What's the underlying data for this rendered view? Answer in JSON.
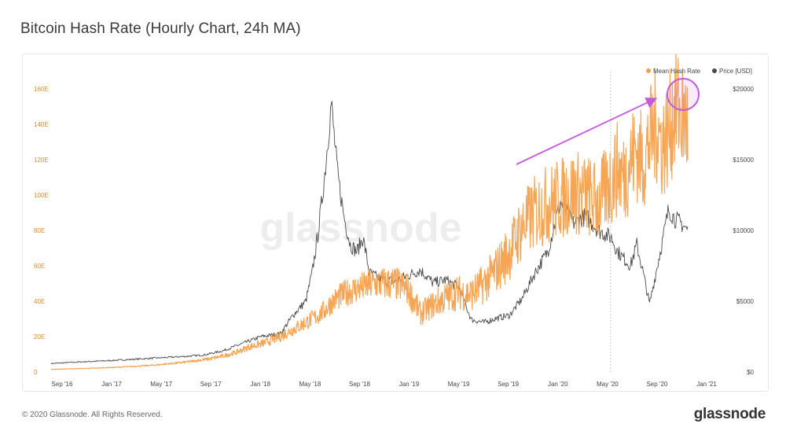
{
  "header": {
    "title": "Bitcoin Hash Rate (Hourly Chart, 24h MA)"
  },
  "footer": {
    "copyright": "© 2020 Glassnode. All Rights Reserved.",
    "brand": "glassnode"
  },
  "watermark": "glassnode",
  "colors": {
    "hash": "#f5a04c",
    "price": "#4a4a4a",
    "annotation": "#c45bdc",
    "leftAxis": "#e08a2e"
  },
  "chart_data": {
    "type": "line",
    "title": "Bitcoin Hash Rate (Hourly Chart, 24h MA)",
    "x_ticks": [
      "Sep '16",
      "Jan '17",
      "May '17",
      "Sep '17",
      "Jan '18",
      "May '18",
      "Sep '18",
      "Jan '19",
      "May '19",
      "Sep '19",
      "Jan '20",
      "May '20",
      "Sep '20",
      "Jan '21"
    ],
    "y_left": {
      "label": "Mean Hash Rate",
      "ticks": [
        "0",
        "20E",
        "40E",
        "60E",
        "80E",
        "100E",
        "120E",
        "140E",
        "160E"
      ],
      "ylim": [
        0,
        160
      ]
    },
    "y_right": {
      "label": "Price [USD]",
      "ticks": [
        "$0",
        "$5000",
        "$10000",
        "$15000",
        "$20000"
      ],
      "ylim": [
        0,
        20000
      ]
    },
    "legend": {
      "position": "top-right",
      "entries": [
        "Mean Hash Rate",
        "Price [USD]"
      ]
    },
    "series": [
      {
        "name": "Mean Hash Rate",
        "axis": "left",
        "x": [
          0.0,
          0.03,
          0.07,
          0.11,
          0.13,
          0.16,
          0.18,
          0.2,
          0.22,
          0.25,
          0.27,
          0.29,
          0.31,
          0.34,
          0.36,
          0.38,
          0.4,
          0.42,
          0.43,
          0.44,
          0.45,
          0.47,
          0.49,
          0.51,
          0.54,
          0.56,
          0.58,
          0.6,
          0.62,
          0.64,
          0.66,
          0.68,
          0.7,
          0.72,
          0.74,
          0.76,
          0.78,
          0.8,
          0.82,
          0.84,
          0.86,
          0.88,
          0.89,
          0.9,
          0.91,
          0.92,
          0.93,
          0.94,
          0.95,
          0.96,
          0.97,
          0.98,
          0.99,
          1.0
        ],
        "y": [
          1.5,
          1.8,
          2.2,
          2.8,
          3.2,
          3.8,
          4.5,
          5.2,
          6.0,
          7.5,
          9.0,
          11,
          14,
          17,
          20,
          24,
          28,
          32,
          35,
          39,
          42,
          46,
          48,
          50,
          50,
          47,
          33,
          38,
          42,
          45,
          44,
          50,
          58,
          68,
          82,
          90,
          95,
          98,
          102,
          100,
          96,
          108,
          115,
          110,
          120,
          125,
          118,
          130,
          140,
          128,
          135,
          150,
          145,
          140
        ]
      },
      {
        "name": "Price [USD]",
        "axis": "right",
        "x": [
          0.0,
          0.04,
          0.09,
          0.13,
          0.17,
          0.21,
          0.24,
          0.27,
          0.3,
          0.33,
          0.36,
          0.38,
          0.4,
          0.41,
          0.42,
          0.43,
          0.44,
          0.45,
          0.46,
          0.47,
          0.48,
          0.49,
          0.5,
          0.52,
          0.54,
          0.56,
          0.58,
          0.6,
          0.62,
          0.64,
          0.66,
          0.68,
          0.7,
          0.72,
          0.74,
          0.76,
          0.78,
          0.8,
          0.82,
          0.84,
          0.86,
          0.88,
          0.89,
          0.9,
          0.91,
          0.92,
          0.93,
          0.94,
          0.95,
          0.96,
          0.97,
          0.98,
          0.99,
          1.0
        ],
        "y": [
          600,
          700,
          800,
          900,
          1000,
          1100,
          1200,
          1500,
          2000,
          2500,
          2700,
          4000,
          5000,
          7000,
          10000,
          14000,
          19000,
          14000,
          11000,
          9000,
          8500,
          9500,
          7000,
          6500,
          6400,
          6800,
          7200,
          6300,
          6500,
          6000,
          3700,
          3500,
          3800,
          4000,
          5200,
          7000,
          8500,
          12000,
          10500,
          11000,
          10000,
          9500,
          8500,
          8000,
          7500,
          9000,
          7000,
          4800,
          7000,
          9200,
          11500,
          10800,
          10500,
          10000
        ]
      }
    ],
    "annotation": {
      "type": "arrow-and-circle",
      "target": "latest Mean Hash Rate peak (~160E, Oct '20)"
    }
  }
}
